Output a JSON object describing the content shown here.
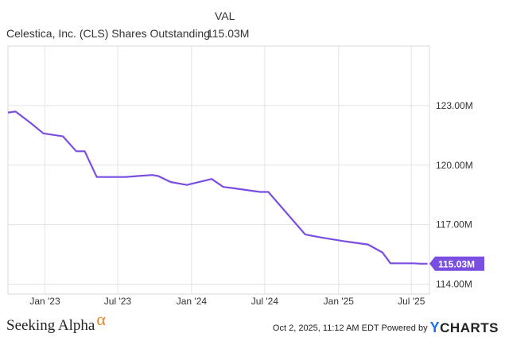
{
  "header": {
    "column_label": "VAL",
    "series_label": "Celestica, Inc. (CLS) Shares Outstanding",
    "series_value": "115.03M"
  },
  "chart_data": {
    "type": "line",
    "x_ticks": [
      "Jan '23",
      "Jul '23",
      "Jan '24",
      "Jul '24",
      "Jan '25",
      "Jul '25"
    ],
    "y_ticks": [
      "123.00M",
      "120.00M",
      "117.00M",
      "114.00M"
    ],
    "y_tick_values": [
      123,
      120,
      117,
      114
    ],
    "ylim": [
      113.5,
      126.0
    ],
    "line_color": "#7a4ee0",
    "last_value_label": "115.03M",
    "series": [
      {
        "values": [
          [
            "2022-10-01",
            122.65
          ],
          [
            "2022-10-20",
            122.7
          ],
          [
            "2022-11-25",
            122.15
          ],
          [
            "2022-12-28",
            121.6
          ],
          [
            "2023-02-15",
            121.45
          ],
          [
            "2023-03-20",
            120.7
          ],
          [
            "2023-04-10",
            120.7
          ],
          [
            "2023-05-10",
            119.4
          ],
          [
            "2023-06-20",
            119.4
          ],
          [
            "2023-07-20",
            119.4
          ],
          [
            "2023-08-20",
            119.45
          ],
          [
            "2023-09-25",
            119.5
          ],
          [
            "2023-10-10",
            119.45
          ],
          [
            "2023-11-10",
            119.15
          ],
          [
            "2023-12-20",
            119.0
          ],
          [
            "2024-02-20",
            119.3
          ],
          [
            "2024-03-20",
            118.9
          ],
          [
            "2024-04-10",
            118.85
          ],
          [
            "2024-06-20",
            118.65
          ],
          [
            "2024-07-10",
            118.65
          ],
          [
            "2024-10-10",
            116.5
          ],
          [
            "2024-11-20",
            116.35
          ],
          [
            "2025-01-20",
            116.15
          ],
          [
            "2025-03-15",
            116.0
          ],
          [
            "2025-04-20",
            115.6
          ],
          [
            "2025-05-10",
            115.05
          ],
          [
            "2025-07-05",
            115.05
          ],
          [
            "2025-07-25",
            115.03
          ],
          [
            "2025-08-10",
            115.03
          ]
        ]
      }
    ]
  },
  "footer": {
    "brand_left": "Seeking Alpha",
    "brand_left_mark": "α",
    "timestamp": "Oct 2, 2025, 11:12 AM EDT Powered by",
    "brand_right_y": "Y",
    "brand_right_rest": "CHARTS"
  }
}
